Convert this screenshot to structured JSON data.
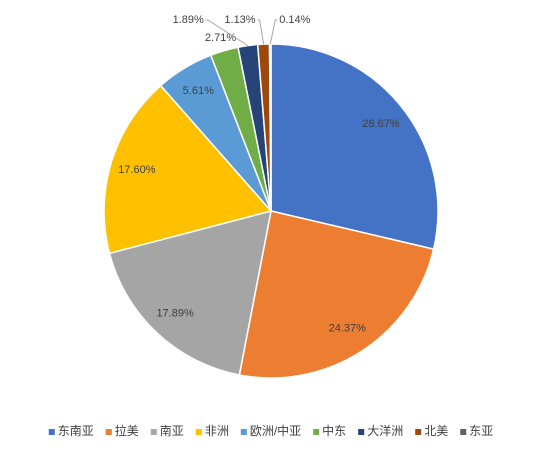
{
  "chart_data": {
    "type": "pie",
    "categories": [
      "东南亚",
      "拉美",
      "南亚",
      "非洲",
      "欧洲/中亚",
      "中东",
      "大洋洲",
      "北美",
      "东亚"
    ],
    "values": [
      28.67,
      24.37,
      17.89,
      17.6,
      5.61,
      2.71,
      1.89,
      1.13,
      0.14
    ],
    "value_labels": [
      "28.67%",
      "24.37%",
      "17.89%",
      "17.60%",
      "5.61%",
      "2.71%",
      "1.89%",
      "1.13%",
      "0.14%"
    ],
    "colors": [
      "#4472c4",
      "#ed7d31",
      "#a5a5a5",
      "#ffc000",
      "#5b9bd5",
      "#70ad47",
      "#264478",
      "#9e480e",
      "#636363"
    ],
    "legend": "bottom"
  }
}
